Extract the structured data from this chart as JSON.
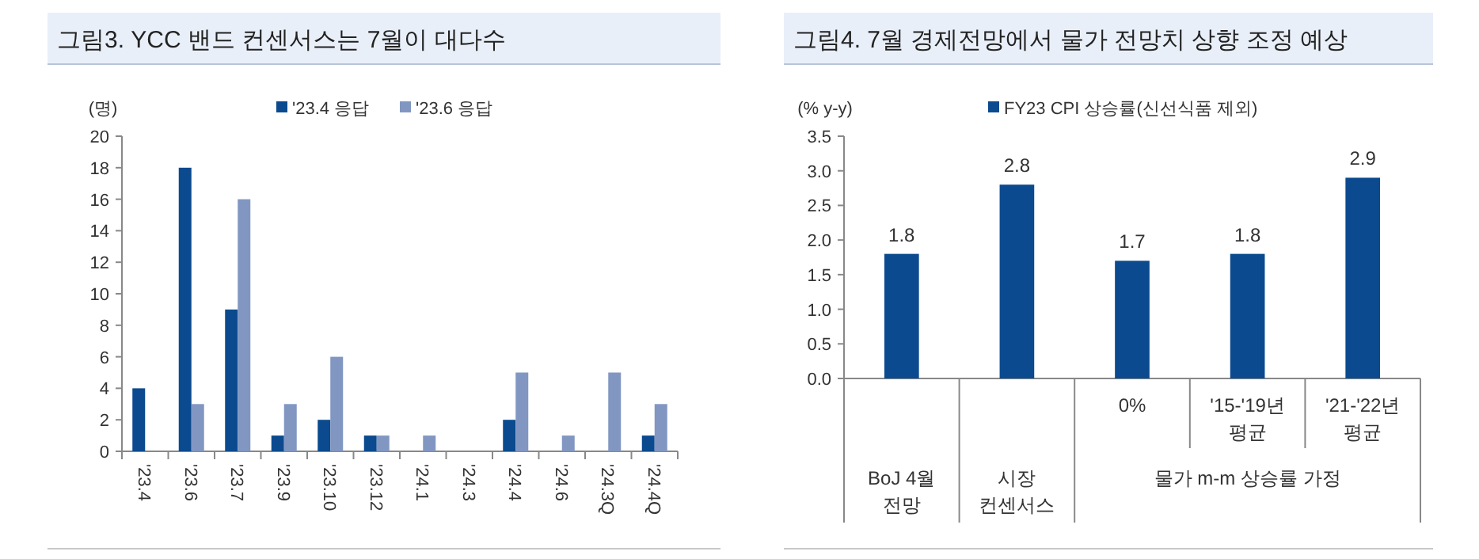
{
  "chart_data": [
    {
      "type": "bar",
      "title": "그림3. YCC 밴드 컨센서스는 7월이 대다수",
      "ylabel": "(명)",
      "categories": [
        "'23.4",
        "'23.6",
        "'23.7",
        "'23.9",
        "'23.10",
        "'23.12",
        "'24.1",
        "'24.3",
        "'24.4",
        "'24.6",
        "'24.3Q",
        "'24.4Q"
      ],
      "series": [
        {
          "name": "'23.4 응답",
          "color": "#0b4a8e",
          "values": [
            4,
            18,
            9,
            1,
            2,
            1,
            0,
            0,
            2,
            0,
            0,
            1
          ]
        },
        {
          "name": "'23.6 응답",
          "color": "#8197c2",
          "values": [
            0,
            3,
            16,
            3,
            6,
            1,
            1,
            0,
            5,
            1,
            5,
            3
          ]
        }
      ],
      "ylim": [
        0,
        20
      ],
      "yticks": [
        0,
        2,
        4,
        6,
        8,
        10,
        12,
        14,
        16,
        18,
        20
      ],
      "legend": "top",
      "grid": false
    },
    {
      "type": "bar",
      "title": "그림4. 7월 경제전망에서 물가 전망치 상향 조정 예상",
      "ylabel": "(% y-y)",
      "categories": [
        "BoJ 4월\n전망",
        "시장\n컨센서스",
        "0%",
        "'15-'19년\n평균",
        "'21-'22년\n평균"
      ],
      "series": [
        {
          "name": "FY23 CPI 상승률(신선식품 제외)",
          "color": "#0b4a8e",
          "values": [
            1.8,
            2.8,
            1.7,
            1.8,
            2.9
          ]
        }
      ],
      "annotations": [
        "물가 m-m 상승률 가정"
      ],
      "ylim": [
        0,
        3.5
      ],
      "yticks": [
        {
          "value": 0,
          "label": "0.0"
        },
        {
          "value": 0.5,
          "label": "0.5"
        },
        {
          "value": 1,
          "label": "1.0"
        },
        {
          "value": 1.5,
          "label": "1.5"
        },
        {
          "value": 2,
          "label": "2.0"
        },
        {
          "value": 2.5,
          "label": "2.5"
        },
        {
          "value": 3,
          "label": "3.0"
        },
        {
          "value": 3.5,
          "label": "3.5"
        }
      ],
      "data_labels": true,
      "legend": "top",
      "grid": false
    }
  ]
}
